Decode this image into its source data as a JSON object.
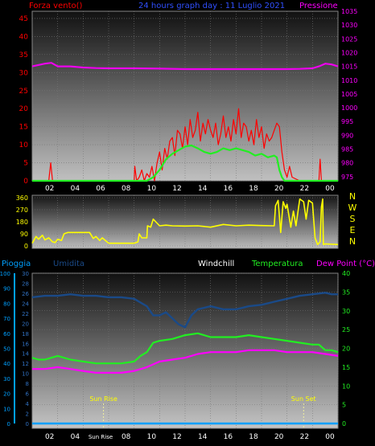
{
  "chart_data": [
    {
      "type": "line",
      "title": "24 hours graph day : 11 Luglio 2021",
      "ylabel_left": "Forza vento()",
      "ylabel_right": "Pressione",
      "x_ticks": [
        "02",
        "04",
        "06",
        "08",
        "10",
        "12",
        "14",
        "16",
        "18",
        "20",
        "22",
        "00"
      ],
      "y_left_ticks": [
        "0",
        "5",
        "10",
        "15",
        "20",
        "25",
        "30",
        "35",
        "40",
        "45"
      ],
      "y_left_range": [
        0,
        47
      ],
      "y_right_ticks": [
        "975",
        "980",
        "985",
        "990",
        "995",
        "1000",
        "1005",
        "1010",
        "1015",
        "1020",
        "1025",
        "1030",
        "1035"
      ],
      "y_right_range": [
        973.5,
        1035
      ],
      "colors": {
        "gust": "#ff0000",
        "wind": "#22ee22",
        "pressure": "#ee00ee"
      },
      "series": [
        {
          "key": "gust",
          "x": [
            0,
            0.5,
            1.3,
            1.45,
            1.6,
            2.5,
            4,
            6,
            8,
            8.05,
            8.2,
            8.4,
            8.6,
            8.8,
            9,
            9.2,
            9.4,
            9.6,
            9.8,
            10,
            10.2,
            10.4,
            10.6,
            10.8,
            11,
            11.2,
            11.4,
            11.6,
            11.8,
            12,
            12.2,
            12.4,
            12.6,
            12.8,
            13,
            13.2,
            13.4,
            13.6,
            13.8,
            14,
            14.2,
            14.4,
            14.6,
            14.8,
            15,
            15.2,
            15.4,
            15.6,
            15.8,
            16,
            16.2,
            16.4,
            16.6,
            16.8,
            17,
            17.2,
            17.4,
            17.6,
            17.8,
            18,
            18.2,
            18.4,
            18.6,
            18.8,
            19,
            19.2,
            19.4,
            19.6,
            19.8,
            20,
            20.2,
            20.4,
            21,
            22,
            22.5,
            22.6,
            22.7,
            23,
            24
          ],
          "y": [
            0,
            0,
            0,
            5,
            0,
            0,
            0,
            0,
            0,
            4,
            0,
            1,
            3,
            0,
            2,
            1,
            4,
            0,
            5,
            8,
            3,
            9,
            6,
            11,
            12,
            7,
            14,
            13,
            9,
            15,
            10,
            17,
            12,
            14,
            19,
            11,
            16,
            13,
            17,
            14,
            12,
            16,
            10,
            13,
            18,
            12,
            15,
            11,
            17,
            13,
            20,
            12,
            16,
            15,
            11,
            14,
            10,
            17,
            12,
            15,
            9,
            13,
            11,
            12,
            14,
            16,
            15,
            8,
            3,
            1,
            4,
            1,
            0,
            0,
            0,
            6,
            0,
            0,
            0
          ]
        },
        {
          "key": "wind",
          "x": [
            0,
            8,
            9,
            9.5,
            10,
            10.5,
            11,
            11.5,
            12,
            12.5,
            13,
            13.5,
            14,
            14.5,
            15,
            15.5,
            16,
            16.5,
            17,
            17.5,
            18,
            18.5,
            19,
            19.2,
            19.4,
            19.6,
            19.8,
            20,
            24
          ],
          "y": [
            0,
            0,
            0,
            1,
            3,
            6,
            7.5,
            8.5,
            9.5,
            9.8,
            9,
            8,
            7.5,
            8,
            9,
            8.5,
            9,
            8.5,
            8,
            7,
            7.5,
            6.5,
            7,
            6.5,
            3,
            1,
            0,
            0,
            0
          ]
        },
        {
          "key": "pressure",
          "x": [
            0,
            1,
            1.5,
            2,
            3,
            4,
            5,
            6,
            8,
            10,
            12,
            14,
            16,
            18,
            20,
            21,
            22,
            22.5,
            23,
            23.5,
            24
          ],
          "y": [
            1015,
            1016,
            1016.3,
            1015,
            1015,
            1014.6,
            1014.4,
            1014.3,
            1014.3,
            1014.2,
            1014,
            1014,
            1014,
            1014,
            1014,
            1014.1,
            1014.3,
            1015,
            1016,
            1015.7,
            1015
          ]
        }
      ]
    },
    {
      "type": "line",
      "ylabel_right": [
        "N",
        "W",
        "S",
        "E",
        "N"
      ],
      "x_ticks": [
        "02",
        "04",
        "06",
        "08",
        "10",
        "12",
        "14",
        "16",
        "18",
        "20",
        "22",
        "00"
      ],
      "y_ticks": [
        "0",
        "90",
        "180",
        "270",
        "360"
      ],
      "ylim": [
        0,
        360
      ],
      "colors": {
        "direction": "#ffff00"
      },
      "series": [
        {
          "key": "direction",
          "x": [
            0,
            0.3,
            0.5,
            0.8,
            1,
            1.3,
            1.6,
            1.8,
            2,
            2.3,
            2.5,
            2.8,
            3,
            4,
            4.5,
            4.8,
            5,
            5.3,
            5.5,
            6,
            6.5,
            7,
            8,
            8.3,
            8.4,
            8.6,
            9,
            9.05,
            9.3,
            9.5,
            10,
            10.5,
            11,
            12,
            13,
            14,
            15,
            16,
            17,
            18,
            19,
            19.1,
            19.3,
            19.5,
            19.7,
            19.9,
            20,
            20.3,
            20.5,
            20.7,
            21,
            21.3,
            21.5,
            21.7,
            22,
            22.2,
            22.4,
            22.6,
            22.7,
            22.8,
            22.85,
            23,
            24
          ],
          "y": [
            20,
            70,
            50,
            80,
            45,
            60,
            30,
            25,
            50,
            40,
            90,
            100,
            100,
            100,
            100,
            55,
            70,
            40,
            60,
            20,
            20,
            20,
            20,
            30,
            90,
            60,
            60,
            150,
            140,
            200,
            150,
            155,
            150,
            148,
            150,
            140,
            160,
            150,
            155,
            152,
            150,
            300,
            340,
            100,
            330,
            280,
            310,
            140,
            260,
            150,
            350,
            330,
            200,
            340,
            320,
            60,
            10,
            30,
            290,
            350,
            10,
            15,
            10
          ]
        }
      ]
    },
    {
      "type": "line",
      "labels": {
        "rain": "Pioggia",
        "humidity": "Umidita",
        "windchill": "Windchill",
        "temperature": "Temperatura",
        "dewpoint": "Dew Point (°C)"
      },
      "x_ticks": [
        "02",
        "04",
        "Sun Rise",
        "08",
        "10",
        "12",
        "14",
        "16",
        "18",
        "20",
        "22",
        "00"
      ],
      "y_rain_ticks": [
        "0",
        "10",
        "20",
        "30",
        "40",
        "50",
        "60",
        "70",
        "80",
        "90",
        "100"
      ],
      "y_rain_range": [
        0,
        100
      ],
      "y_hum_ticks": [
        "0",
        "2",
        "4",
        "6",
        "8",
        "10",
        "12",
        "14",
        "16",
        "18",
        "20",
        "22",
        "24",
        "26",
        "28",
        "30"
      ],
      "y_hum_range": [
        0,
        30
      ],
      "y_temp_ticks": [
        "0",
        "5",
        "10",
        "15",
        "20",
        "25",
        "30",
        "35",
        "40"
      ],
      "y_temp_range": [
        0,
        40
      ],
      "annotations": [
        {
          "text": "Sun Rise",
          "x": 5.6
        },
        {
          "text": "Sun Set",
          "x": 21.3
        }
      ],
      "colors": {
        "rain": "#00a0ff",
        "humidity": "#1a4a88",
        "temperature": "#22ee22",
        "dewpoint": "#ff00ff"
      },
      "series": [
        {
          "key": "rain",
          "x": [
            0,
            24
          ],
          "y": [
            0,
            0
          ]
        },
        {
          "key": "humidity",
          "x": [
            0,
            1,
            2,
            3,
            4,
            5,
            6,
            7,
            8,
            9,
            9.5,
            10,
            10.5,
            11,
            11.5,
            12,
            12.5,
            13,
            14,
            15,
            16,
            17,
            18,
            19,
            20,
            21,
            22,
            23,
            23.5,
            24
          ],
          "y": [
            84,
            85,
            85,
            86,
            85,
            85,
            84,
            84,
            83,
            78,
            72,
            72,
            74,
            70,
            66,
            64,
            72,
            76,
            78,
            76,
            76,
            78,
            79,
            81,
            83,
            85,
            86,
            87,
            86,
            86
          ]
        },
        {
          "key": "temperature",
          "x": [
            0,
            0.5,
            1,
            1.5,
            2,
            2.5,
            3,
            4,
            5,
            6,
            7,
            8,
            8.5,
            9,
            9.5,
            10,
            11,
            12,
            13,
            14,
            15,
            16,
            17,
            18,
            19,
            20,
            21,
            22,
            22.5,
            23,
            23.5,
            24
          ],
          "y": [
            17.5,
            17,
            17,
            17.5,
            18,
            17.5,
            17,
            16.5,
            16,
            16,
            16,
            16.5,
            18,
            19,
            21.5,
            22,
            22.5,
            23.5,
            24,
            23,
            23,
            23,
            23.5,
            23,
            22.5,
            22,
            21.5,
            21,
            21,
            19.5,
            19.5,
            19
          ]
        },
        {
          "key": "dewpoint",
          "x": [
            0,
            1,
            2,
            3,
            4,
            5,
            6,
            7,
            8,
            9,
            10,
            11,
            12,
            13,
            14,
            15,
            16,
            17,
            18,
            19,
            20,
            21,
            22,
            23,
            24
          ],
          "y": [
            14.5,
            14.5,
            15,
            14.5,
            14,
            13.5,
            13.5,
            13.5,
            14,
            15,
            16.5,
            17,
            17.5,
            18.5,
            19,
            19,
            19,
            19.5,
            19.5,
            19.5,
            19,
            19,
            19,
            18.5,
            18
          ]
        }
      ]
    }
  ]
}
